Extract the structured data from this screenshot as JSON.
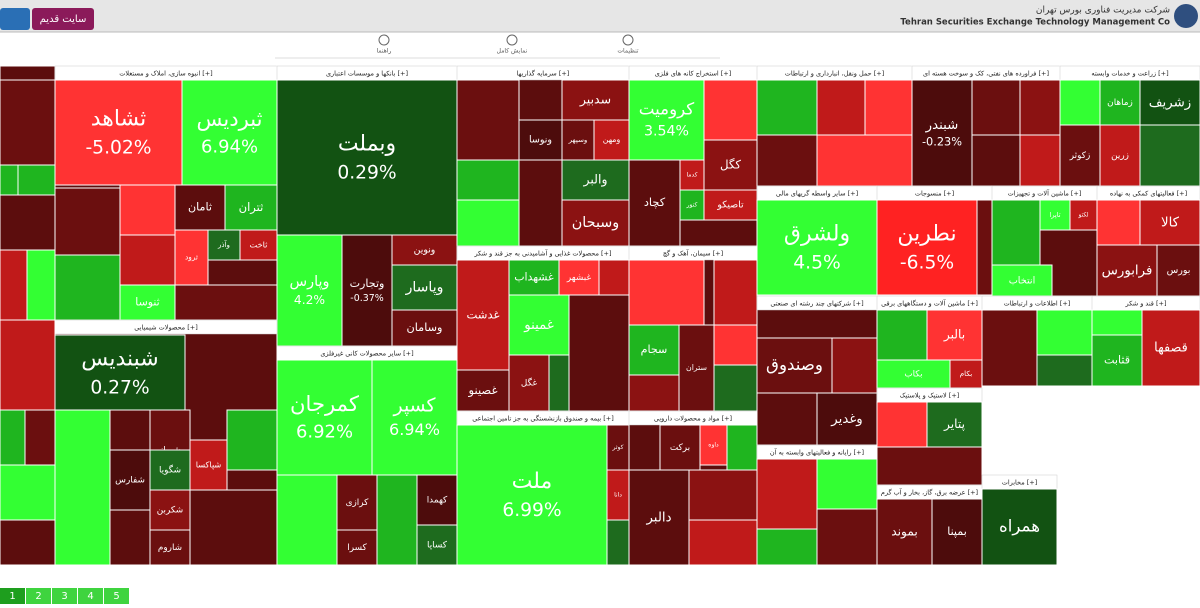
{
  "header": {
    "company_fa": "شرکت مدیریت فناوری بورس تهران",
    "company_en": "Tehran Securities Exchange Technology Management Co",
    "old_site": "سایت قدیم"
  },
  "toolbar": [
    "راهنما",
    "نمایش کامل",
    "تنظیمات"
  ],
  "sectors": [
    {
      "tiles": [
        {
          "color": "#6b0f0f"
        },
        {
          "color": "#1fb51f"
        },
        {
          "color": "#1fb51f"
        },
        {
          "color": "#5c0d0d"
        },
        {
          "color": "#c01a1a"
        },
        {
          "color": "#33ff33"
        }
      ]
    },
    {
      "title": "انبوه سازی، املاک و مستغلات [+]",
      "tiles": [
        {
          "name": "ثشاهد",
          "change": "-5.02%",
          "color": "#ff3333"
        },
        {
          "name": "ثبردیس",
          "change": "6.94%",
          "color": "#33ff33"
        },
        {
          "name": "ثامان",
          "color": "#5c0d0d"
        },
        {
          "name": "ثتران",
          "color": "#1fb51f"
        },
        {
          "name": "وآذر",
          "color": "#1e6b1e"
        },
        {
          "name": "ثاخت",
          "color": "#c01a1a"
        },
        {
          "name": "ثرود",
          "color": "#ff3333"
        },
        {
          "name": "ثنوسا",
          "color": "#33ff33"
        },
        {
          "color": "#6b0f0f"
        },
        {
          "color": "#ff3333"
        },
        {
          "color": "#1fb51f"
        },
        {
          "color": "#c01a1a"
        },
        {
          "color": "#6b0f0f"
        }
      ]
    },
    {
      "title": "بانکها و موسسات اعتباری [+]",
      "tiles": [
        {
          "name": "وبملت",
          "change": "0.29%",
          "color": "#125212"
        },
        {
          "name": "وپارس",
          "change": "4.2%",
          "color": "#33ff33"
        },
        {
          "name": "وتجارت",
          "change": "-0.37%",
          "color": "#4d0c0c"
        },
        {
          "name": "ونوین",
          "color": "#8b1212"
        },
        {
          "name": "وپاسار",
          "color": "#1e6b1e"
        },
        {
          "name": "وسامان",
          "color": "#6b0f0f"
        }
      ]
    },
    {
      "title": "سایر محصولات کانی غیرفلزی [+]",
      "tiles": [
        {
          "name": "کمرجان",
          "change": "6.92%",
          "color": "#33ff33"
        },
        {
          "name": "کسپر",
          "change": "6.94%",
          "color": "#33ff33"
        },
        {
          "name": "کرازی",
          "color": "#6b0f0f"
        },
        {
          "name": "کهمدا",
          "color": "#4d0c0c"
        },
        {
          "name": "کساپا",
          "color": "#1e6b1e"
        },
        {
          "name": "کسرا",
          "color": "#6b0f0f"
        },
        {
          "color": "#33ff33"
        },
        {
          "color": "#1fb51f"
        }
      ]
    },
    {
      "title": "سرمایه گذاریها [+]",
      "tiles": [
        {
          "color": "#6b0f0f"
        },
        {
          "name": "سدبیر",
          "color": "#8b1212"
        },
        {
          "name": "وسپهر",
          "color": "#6b0f0f"
        },
        {
          "name": "ونوسا",
          "color": "#4d0c0c"
        },
        {
          "color": "#1fb51f"
        },
        {
          "name": "ومهن",
          "color": "#c01a1a"
        },
        {
          "color": "#5c0d0d"
        },
        {
          "name": "والبر",
          "color": "#1e6b1e"
        },
        {
          "color": "#33ff33"
        },
        {
          "name": "وسبحان",
          "color": "#8b1212"
        }
      ]
    },
    {
      "title": "محصولات غذایی و آشامیدنی به جز قند و شکر [+]",
      "tiles": [
        {
          "name": "غشهداب",
          "color": "#1fb51f"
        },
        {
          "name": "غبشهر",
          "color": "#ff3333"
        },
        {
          "name": "غدشت",
          "color": "#c01a1a"
        },
        {
          "name": "غصینو",
          "color": "#6b0f0f"
        },
        {
          "name": "غگل",
          "color": "#8b1212"
        },
        {
          "name": "غمینو",
          "color": "#33ff33"
        },
        {
          "color": "#5c0d0d"
        },
        {
          "color": "#1e6b1e"
        },
        {
          "color": "#c01a1a"
        }
      ]
    },
    {
      "title": "بیمه و صندوق بازنشستگی به جز تامین اجتماعی [+]",
      "tiles": [
        {
          "name": "ملت",
          "change": "6.99%",
          "color": "#33ff33"
        },
        {
          "name": "کوثر",
          "color": "#6b0f0f"
        },
        {
          "name": "دانا",
          "color": "#c01a1a"
        },
        {
          "color": "#1e6b1e"
        }
      ]
    },
    {
      "title": "استخراج کانه های فلزی [+]",
      "tiles": [
        {
          "name": "کرومیت",
          "change": "3.54%",
          "color": "#33ff33"
        },
        {
          "name": "کگل",
          "color": "#8b1212"
        },
        {
          "name": "کدما",
          "color": "#c01a1a"
        },
        {
          "name": "کنور",
          "color": "#1fb51f"
        },
        {
          "name": "کچاد",
          "color": "#5c0d0d"
        },
        {
          "name": "تاصیکو",
          "color": "#c01a1a"
        },
        {
          "color": "#ff3333"
        }
      ]
    },
    {
      "title": "سیمان، آهک و گچ [+]",
      "tiles": [
        {
          "color": "#ff3333"
        },
        {
          "name": "سجام",
          "color": "#1fb51f"
        },
        {
          "name": "ستران",
          "color": "#6b0f0f"
        },
        {
          "color": "#c01a1a"
        },
        {
          "color": "#8b1212"
        },
        {
          "color": "#ff3333"
        },
        {
          "color": "#1e6b1e"
        }
      ]
    },
    {
      "title": "مواد و محصولات دارویی [+]",
      "tiles": [
        {
          "name": "برکت",
          "color": "#6b0f0f"
        },
        {
          "name": "داوه",
          "color": "#ff3333"
        },
        {
          "name": "دالبر",
          "color": "#5c0d0d"
        },
        {
          "color": "#1fb51f"
        },
        {
          "color": "#8b1212"
        },
        {
          "color": "#c01a1a"
        }
      ]
    },
    {
      "title": "حمل ونقل، انبارداری و ارتباطات [+]",
      "tiles": [
        {
          "color": "#1fb51f"
        },
        {
          "color": "#c01a1a"
        },
        {
          "color": "#ff3333"
        },
        {
          "color": "#ff3333"
        },
        {
          "color": "#6b0f0f"
        },
        {
          "color": "#c01a1a"
        }
      ]
    },
    {
      "title": "فراورده های نفتی، کک و سوخت هسته ای [+]",
      "tiles": [
        {
          "name": "شبندر",
          "change": "-0.23%",
          "color": "#4d0c0c"
        },
        {
          "color": "#6b0f0f"
        },
        {
          "color": "#8b1212"
        },
        {
          "color": "#5c0d0d"
        },
        {
          "color": "#c01a1a"
        }
      ]
    },
    {
      "title": "زراعت و خدمات وابسته [+]",
      "tiles": [
        {
          "name": "زماهان",
          "color": "#1fb51f"
        },
        {
          "name": "زشریف",
          "color": "#125212"
        },
        {
          "name": "زرین",
          "color": "#c01a1a"
        },
        {
          "name": "زکوثر",
          "color": "#6b0f0f"
        },
        {
          "color": "#33ff33"
        },
        {
          "color": "#1e6b1e"
        }
      ]
    },
    {
      "title": "سایر واسطه گریهای مالی [+]",
      "tiles": [
        {
          "name": "ولشرق",
          "change": "4.5%",
          "color": "#33ff33"
        },
        {
          "color": "#6b0f0f"
        },
        {
          "color": "#1fb51f"
        }
      ]
    },
    {
      "title": "منسوجات [+]",
      "tiles": [
        {
          "name": "نطرین",
          "change": "-6.5%",
          "color": "#ff2222"
        },
        {
          "color": "#6b0f0f"
        }
      ]
    },
    {
      "title": "ماشین آلات و تجهیزات [+]",
      "tiles": [
        {
          "name": "تاپرا",
          "color": "#33ff33"
        },
        {
          "name": "لکتو",
          "color": "#c01a1a"
        },
        {
          "name": "انتخاب",
          "color": "#33ff33"
        },
        {
          "color": "#1fb51f"
        }
      ]
    },
    {
      "title": "فعالیتهای کمکی به نهاده [+]",
      "tiles": [
        {
          "name": "کالا",
          "color": "#c01a1a"
        },
        {
          "name": "فرابورس",
          "color": "#8b1212"
        },
        {
          "name": "بورس",
          "color": "#6b0f0f"
        },
        {
          "color": "#ff3333"
        }
      ]
    },
    {
      "title": "شرکتهای چند رشته ای صنعتی [+]",
      "tiles": [
        {
          "name": "وصندوق",
          "color": "#6b0f0f"
        },
        {
          "name": "وغدیر",
          "color": "#4d0c0c"
        },
        {
          "color": "#5c0d0d"
        },
        {
          "color": "#8b1212"
        }
      ]
    },
    {
      "title": "رایانه و فعالیتهای وابسته به آن [+]",
      "tiles": [
        {
          "color": "#c01a1a"
        },
        {
          "color": "#33ff33"
        },
        {
          "color": "#6b0f0f"
        },
        {
          "color": "#1fb51f"
        }
      ]
    },
    {
      "title": "ماشین آلات و دستگاههای برقی [+]",
      "tiles": [
        {
          "name": "بالبر",
          "color": "#ff3333"
        },
        {
          "name": "بکام",
          "color": "#c01a1a"
        },
        {
          "name": "بکاب",
          "color": "#33ff33"
        },
        {
          "color": "#1fb51f"
        }
      ]
    },
    {
      "title": "لاستیک و پلاستیک [+]",
      "tiles": [
        {
          "name": "پتایر",
          "color": "#1e6b1e"
        },
        {
          "color": "#ff3333"
        },
        {
          "color": "#6b0f0f"
        }
      ]
    },
    {
      "title": "عرضه برق، گاز، بخار و آب گرم [+]",
      "tiles": [
        {
          "name": "بموند",
          "color": "#6b0f0f"
        },
        {
          "name": "بمپنا",
          "color": "#4d0c0c"
        },
        {
          "color": "#c01a1a"
        }
      ]
    },
    {
      "title": "اطلاعات و ارتباطات [+]",
      "tiles": [
        {
          "color": "#6b0f0f"
        },
        {
          "color": "#33ff33"
        },
        {
          "color": "#1e6b1e"
        }
      ]
    },
    {
      "title": "قند و شکر [+]",
      "tiles": [
        {
          "name": "قثابت",
          "color": "#1fb51f"
        },
        {
          "name": "قصفها",
          "color": "#c01a1a"
        },
        {
          "color": "#33ff33"
        }
      ]
    },
    {
      "title": "مخابرات [+]",
      "tiles": [
        {
          "name": "همراه",
          "color": "#125212"
        }
      ]
    },
    {
      "title": "محصولات شیمیایی [+]",
      "tiles": [
        {
          "name": "شبندیس",
          "change": "0.27%",
          "color": "#125212"
        },
        {
          "name": "شیراز",
          "color": "#6b0f0f"
        },
        {
          "name": "شگویا",
          "color": "#1e6b1e"
        },
        {
          "name": "شفارس",
          "color": "#4d0c0c"
        },
        {
          "name": "شکربن",
          "color": "#8b1212"
        },
        {
          "name": "شاروم",
          "color": "#6b0f0f"
        },
        {
          "name": "شپاکسا",
          "color": "#c01a1a"
        },
        {
          "color": "#1fb51f"
        },
        {
          "color": "#5c0d0d"
        },
        {
          "color": "#33ff33"
        }
      ]
    },
    {
      "tiles": [
        {
          "color": "#c01a1a"
        },
        {
          "color": "#1fb51f"
        },
        {
          "color": "#6b0f0f"
        },
        {
          "color": "#33ff33"
        },
        {
          "color": "#5c0d0d"
        }
      ]
    }
  ],
  "pager": [
    "1",
    "2",
    "3",
    "4",
    "5"
  ]
}
